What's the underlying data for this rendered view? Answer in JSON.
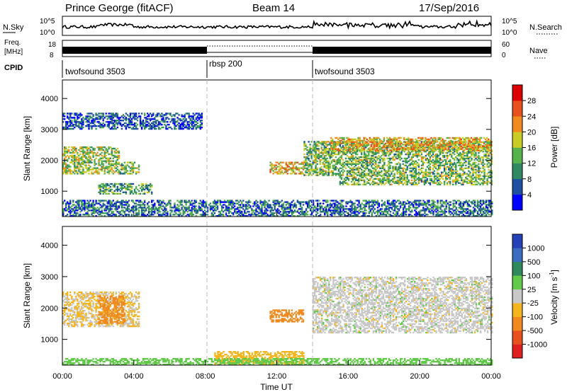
{
  "header": {
    "station": "Prince George (fitACF)",
    "beam": "Beam 14",
    "date": "17/Sep/2016"
  },
  "top_panels": {
    "nsky_label": "N.Sky",
    "nsky_ticks": [
      "10^5",
      "10^0"
    ],
    "nsearch_label": "N.Search",
    "freq_label_1": "Freq.",
    "freq_label_2": "[MHz]",
    "freq_ticks": [
      "18",
      "8"
    ],
    "nave_ticks": [
      "60",
      "0"
    ],
    "nave_label": "Nave",
    "cpid_label": "CPID",
    "cpid_segments": [
      {
        "label": "twofsound 3503",
        "start_hour": 0,
        "end_hour": 8
      },
      {
        "label": "rbsp 200",
        "start_hour": 8,
        "end_hour": 14
      },
      {
        "label": "twofsound 3503",
        "start_hour": 14,
        "end_hour": 24
      }
    ]
  },
  "x_axis": {
    "label": "Time UT",
    "ticks": [
      "00:00",
      "04:00",
      "08:00",
      "12:00",
      "16:00",
      "20:00",
      "00:00"
    ],
    "tick_hours": [
      0,
      4,
      8,
      12,
      16,
      20,
      24
    ]
  },
  "y_axis": {
    "label": "Slant Range [km]",
    "ticks": [
      "1000",
      "2000",
      "3000",
      "4000"
    ],
    "tick_values": [
      1000,
      2000,
      3000,
      4000
    ]
  },
  "power_colorbar": {
    "label": "Power [dB]",
    "ticks": [
      "4",
      "8",
      "12",
      "16",
      "20",
      "24",
      "28"
    ],
    "colors": [
      "#0000ff",
      "#1e4fa0",
      "#2f8a63",
      "#56b24a",
      "#c9cc24",
      "#f08c1e",
      "#e8501e",
      "#dd0000"
    ]
  },
  "velocity_colorbar": {
    "label": "Velocity [m s",
    "label_superscript": "-1",
    "label_close": "]",
    "ticks": [
      "1000",
      "500",
      "100",
      "25",
      "-25",
      "-100",
      "-500",
      "-1000"
    ],
    "colors": [
      "#2442b8",
      "#3a6cc0",
      "#2e8a5c",
      "#62c94a",
      "#c8c8c8",
      "#f5b51e",
      "#f08a1e",
      "#e8501e",
      "#e02020"
    ]
  },
  "chart_data": [
    {
      "type": "heatmap",
      "title": "Power",
      "xlabel": "Time UT",
      "ylabel": "Slant Range [km]",
      "xlim": [
        0,
        24
      ],
      "ylim": [
        180,
        4600
      ],
      "colorbar": "Power [dB]",
      "regions": [
        {
          "t0": 0.0,
          "t1": 3.2,
          "r0": 1550,
          "r1": 2450,
          "value": 16
        },
        {
          "t0": 3.2,
          "t1": 4.3,
          "r0": 1550,
          "r1": 1950,
          "value": 14
        },
        {
          "t0": 2.0,
          "t1": 5.0,
          "r0": 900,
          "r1": 1250,
          "value": 12
        },
        {
          "t0": 0.0,
          "t1": 7.8,
          "r0": 3000,
          "r1": 3500,
          "value": 6
        },
        {
          "t0": 11.6,
          "t1": 13.5,
          "r0": 1550,
          "r1": 1950,
          "value": 20
        },
        {
          "t0": 13.5,
          "t1": 24.0,
          "r0": 1500,
          "r1": 2600,
          "value": 14
        },
        {
          "t0": 15.0,
          "t1": 24.0,
          "r0": 2300,
          "r1": 2750,
          "value": 20
        },
        {
          "t0": 15.5,
          "t1": 24.0,
          "r0": 1200,
          "r1": 1500,
          "value": 14
        },
        {
          "t0": 0.0,
          "t1": 24.0,
          "r0": 180,
          "r1": 700,
          "value": 8
        }
      ]
    },
    {
      "type": "heatmap",
      "title": "Velocity",
      "xlabel": "Time UT",
      "ylabel": "Slant Range [km]",
      "xlim": [
        0,
        24
      ],
      "ylim": [
        180,
        4600
      ],
      "colorbar": "Velocity [m s-1]",
      "regions": [
        {
          "t0": 0.0,
          "t1": 4.3,
          "r0": 1400,
          "r1": 2500,
          "value": -30
        },
        {
          "t0": 2.0,
          "t1": 3.5,
          "r0": 1500,
          "r1": 2400,
          "value": -150
        },
        {
          "t0": 11.6,
          "t1": 13.5,
          "r0": 1550,
          "r1": 1950,
          "value": -150
        },
        {
          "t0": 14.0,
          "t1": 24.0,
          "r0": 1200,
          "r1": 3000,
          "value": 0
        },
        {
          "t0": 8.5,
          "t1": 13.5,
          "r0": 180,
          "r1": 600,
          "value": -60
        },
        {
          "t0": 0.0,
          "t1": 24.0,
          "r0": 180,
          "r1": 400,
          "value": 60
        }
      ]
    }
  ]
}
